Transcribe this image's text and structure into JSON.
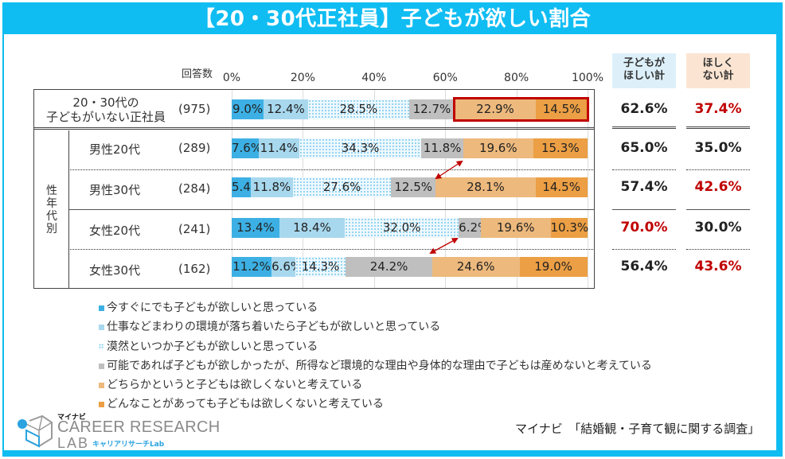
{
  "title": "【20・30代正社員】子どもが欲しい割合",
  "n_header": "回答数",
  "group_label": "性年代別",
  "totals_headers": {
    "want": "子どもが\nほしい計",
    "not_want": "ほしくない計_split",
    "want_line1": "子どもが",
    "want_line2": "ほしい計",
    "not_want_line1": "ほしく",
    "not_want_line2": "ない計"
  },
  "colors": {
    "frame": "#10bdf2",
    "highlight": "#c00000",
    "red_text": "#c00000",
    "want_header_bg": "#ddf0fa",
    "not_want_header_bg": "#fbe5d2"
  },
  "chart_data": {
    "type": "bar",
    "orientation": "horizontal-stacked-100",
    "title": "【20・30代正社員】子どもが欲しい割合",
    "xlabel": "",
    "ylabel": "",
    "xlim": [
      0,
      100
    ],
    "x_ticks": [
      "0%",
      "20%",
      "40%",
      "60%",
      "80%",
      "100%"
    ],
    "grid": true,
    "legend_position": "bottom",
    "categories": [
      {
        "label_line1": "20・30代の",
        "label_line2": "子どもがいない正社員",
        "n": "(975)"
      },
      {
        "label": "男性20代",
        "n": "(289)"
      },
      {
        "label": "男性30代",
        "n": "(284)"
      },
      {
        "label": "女性20代",
        "n": "(241)"
      },
      {
        "label": "女性30代",
        "n": "(162)"
      }
    ],
    "series": [
      {
        "name": "今すぐにでも子どもが欲しいと思っている",
        "color": "#3cb0e4",
        "pattern": "solid",
        "values": [
          9.0,
          7.6,
          5.4,
          13.4,
          11.2
        ]
      },
      {
        "name": "仕事などまわりの環境が落ち着いたら子どもが欲しいと思っている",
        "color": "#a8d8ee",
        "pattern": "solid",
        "values": [
          12.4,
          11.4,
          11.8,
          18.4,
          6.6
        ]
      },
      {
        "name": "漠然といつか子どもが欲しいと思っている",
        "color": "#7ccbf0",
        "pattern": "dots",
        "values": [
          28.5,
          34.3,
          27.6,
          32.0,
          14.3
        ]
      },
      {
        "name": "可能であれば子どもが欲しかったが、所得など環境的な理由や身体的な理由で子どもは産めないと考えている",
        "color": "#bfbfbf",
        "pattern": "solid",
        "values": [
          12.7,
          11.8,
          12.5,
          6.2,
          24.2
        ]
      },
      {
        "name": "どちらかというと子どもは欲しくないと考えている",
        "color": "#edb97d",
        "pattern": "solid",
        "values": [
          22.9,
          19.6,
          28.1,
          19.6,
          24.6
        ]
      },
      {
        "name": "どんなことがあっても子どもは欲しくないと考えている",
        "color": "#ec9f44",
        "pattern": "solid",
        "values": [
          14.5,
          15.3,
          14.5,
          10.3,
          19.0
        ]
      }
    ],
    "labels": [
      [
        "9.0%",
        "12.4%",
        "28.5%",
        "12.7%",
        "22.9%",
        "14.5%"
      ],
      [
        "7.6%",
        "11.4%",
        "34.3%",
        "11.8%",
        "19.6%",
        "15.3%"
      ],
      [
        "5.4%",
        "11.8%",
        "27.6%",
        "12.5%",
        "28.1%",
        "14.5%"
      ],
      [
        "13.4%",
        "18.4%",
        "32.0%",
        "6.2%",
        "19.6%",
        "10.3%"
      ],
      [
        "11.2%",
        "6.6%",
        "14.3%",
        "24.2%",
        "24.6%",
        "19.0%"
      ]
    ],
    "totals": [
      {
        "want": "62.6%",
        "not_want": "37.4%",
        "want_red": false,
        "not_want_red": true
      },
      {
        "want": "65.0%",
        "not_want": "35.0%",
        "want_red": false,
        "not_want_red": false
      },
      {
        "want": "57.4%",
        "not_want": "42.6%",
        "want_red": false,
        "not_want_red": true
      },
      {
        "want": "70.0%",
        "not_want": "30.0%",
        "want_red": true,
        "not_want_red": false
      },
      {
        "want": "56.4%",
        "not_want": "43.6%",
        "want_red": false,
        "not_want_red": true
      }
    ],
    "annotations": [
      {
        "type": "highlight-box",
        "row": 0,
        "from_series": 4,
        "to_series": 5,
        "color": "#c00000"
      },
      {
        "type": "double-arrow",
        "from_row": 1,
        "to_row": 2,
        "description": "comparison of boundary at 'not want' segments",
        "color": "#c00000"
      },
      {
        "type": "double-arrow",
        "from_row": 3,
        "to_row": 4,
        "description": "comparison of boundary at 'not want' segments",
        "color": "#c00000"
      }
    ]
  },
  "footer": {
    "logo_brand": "マイナビ",
    "logo_main": "CAREER RESEARCH",
    "logo_lab": "LAB",
    "logo_sub": "キャリアリサーチLab",
    "source": "マイナビ　「結婚観・子育て観に関する調査」"
  }
}
